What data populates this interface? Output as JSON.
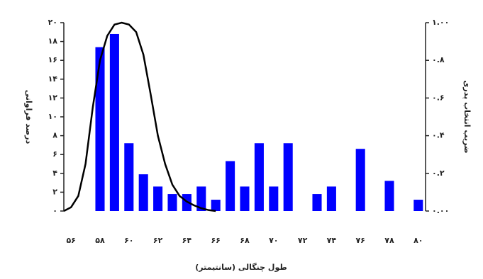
{
  "chart_data": {
    "type": "bar",
    "xlabel": "طول چنگالی (سانتیمتر)",
    "ylabel": "درصد فراوانی",
    "y2label": "ضریب انتخاب پدری",
    "xlim": [
      55.5,
      80.5
    ],
    "xticks": [
      {
        "value": 56,
        "label": "۵۶"
      },
      {
        "value": 58,
        "label": "۵۸"
      },
      {
        "value": 60,
        "label": "۶۰"
      },
      {
        "value": 62,
        "label": "۶۲"
      },
      {
        "value": 64,
        "label": "۶۴"
      },
      {
        "value": 66,
        "label": "۶۶"
      },
      {
        "value": 68,
        "label": "۶۸"
      },
      {
        "value": 70,
        "label": "۷۰"
      },
      {
        "value": 72,
        "label": "۷۲"
      },
      {
        "value": 74,
        "label": "۷۴"
      },
      {
        "value": 76,
        "label": "۷۶"
      },
      {
        "value": 78,
        "label": "۷۸"
      },
      {
        "value": 80,
        "label": "۸۰"
      }
    ],
    "ylim": [
      0,
      20
    ],
    "yticks": [
      {
        "value": 0,
        "label": "۰"
      },
      {
        "value": 2,
        "label": "۲"
      },
      {
        "value": 4,
        "label": "۴"
      },
      {
        "value": 6,
        "label": "۶"
      },
      {
        "value": 8,
        "label": "۸"
      },
      {
        "value": 10,
        "label": "۱۰"
      },
      {
        "value": 12,
        "label": "۱۲"
      },
      {
        "value": 14,
        "label": "۱۴"
      },
      {
        "value": 16,
        "label": "۱۶"
      },
      {
        "value": 18,
        "label": "۱۸"
      },
      {
        "value": 20,
        "label": "۲۰"
      }
    ],
    "y2lim": [
      0,
      1
    ],
    "y2ticks": [
      {
        "value": 0,
        "label": "۰.۰۰"
      },
      {
        "value": 0.2,
        "label": "۰.۲"
      },
      {
        "value": 0.4,
        "label": "۰.۴"
      },
      {
        "value": 0.6,
        "label": "۰.۶"
      },
      {
        "value": 0.8,
        "label": "۰.۸"
      },
      {
        "value": 1,
        "label": "۱.۰۰"
      }
    ],
    "series": [
      {
        "type": "bar",
        "color": "#0000ff",
        "x": [
          58,
          59,
          60,
          61,
          62,
          63,
          64,
          65,
          66,
          67,
          68,
          69,
          70,
          71,
          73,
          74,
          76,
          78,
          80
        ],
        "values": [
          17.4,
          18.8,
          7.2,
          3.9,
          2.6,
          1.8,
          1.8,
          2.6,
          1.2,
          5.3,
          2.6,
          7.2,
          2.6,
          7.2,
          1.8,
          2.6,
          6.6,
          3.2,
          1.2
        ]
      },
      {
        "type": "line",
        "color": "#000000",
        "axis": "y2",
        "x": [
          55.5,
          56,
          56.5,
          57,
          57.5,
          58,
          58.5,
          59,
          59.5,
          60,
          60.5,
          61,
          61.5,
          62,
          62.5,
          63,
          63.5,
          64,
          64.5,
          65,
          65.5,
          66
        ],
        "values": [
          0,
          0.02,
          0.08,
          0.25,
          0.55,
          0.8,
          0.93,
          0.99,
          1,
          0.99,
          0.95,
          0.83,
          0.62,
          0.4,
          0.25,
          0.14,
          0.08,
          0.05,
          0.03,
          0.015,
          0.005,
          0
        ]
      }
    ]
  }
}
